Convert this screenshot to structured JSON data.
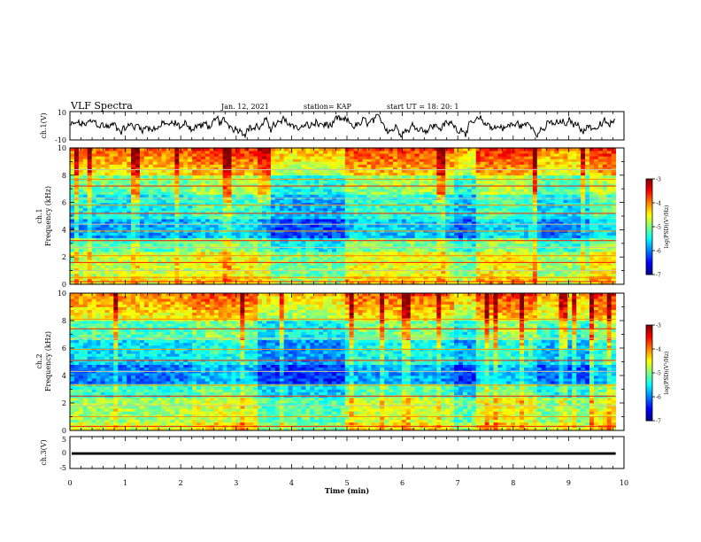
{
  "header": {
    "title": "VLF Spectra",
    "date": "Jan. 12, 2021",
    "station": "station= KAP",
    "start": "start  UT =  18: 20: 1"
  },
  "chart_data": [
    {
      "type": "line",
      "panel": "ch1-waveform",
      "ylabel": "ch.1(V)",
      "ylim": [
        -10,
        10
      ],
      "y_ticks": [
        "10",
        "-10"
      ],
      "xlim": [
        0,
        10
      ]
    },
    {
      "type": "heatmap",
      "panel": "ch1-spectrogram",
      "ylabel": "ch.1\nFrequency (kHz)",
      "ylim": [
        0,
        10
      ],
      "y_ticks": [
        "10",
        "8",
        "6",
        "4",
        "2",
        "0"
      ],
      "xlim": [
        0,
        10
      ],
      "data_end_min": 9.85,
      "colorbar": {
        "label": "log(PSD)(V²/Hz)",
        "range": [
          -7,
          -3
        ],
        "ticks": [
          "-3",
          "-4",
          "-5",
          "-6",
          "-7"
        ]
      },
      "spectral_lines_khz": [
        0.2,
        0.5,
        1.0,
        1.6,
        2.1,
        2.7,
        3.2,
        3.9,
        4.4,
        5.2,
        5.8,
        6.3,
        7.2,
        7.7,
        8.4
      ]
    },
    {
      "type": "heatmap",
      "panel": "ch2-spectrogram",
      "ylabel": "ch.2\nFrequency (kHz)",
      "ylim": [
        0,
        10
      ],
      "y_ticks": [
        "10",
        "8",
        "6",
        "4",
        "2",
        "0"
      ],
      "xlim": [
        0,
        10
      ],
      "data_end_min": 9.85,
      "colorbar": {
        "label": "log(PSD)(V²/Hz)",
        "range": [
          -7,
          -3
        ],
        "ticks": [
          "-3",
          "-4",
          "-5",
          "-6",
          "-7"
        ]
      },
      "spectral_lines_khz": [
        0.3,
        1.0,
        1.8,
        2.5,
        3.3,
        4.3,
        5.1,
        5.9,
        6.7,
        7.4,
        8.1
      ]
    },
    {
      "type": "line",
      "panel": "ch3-waveform",
      "ylabel": "ch.3(V)",
      "ylim": [
        -5,
        5
      ],
      "y_ticks": [
        "5",
        "0",
        "-5"
      ],
      "xlim": [
        0,
        10
      ],
      "level_band": [
        -0.7,
        0.1
      ]
    }
  ],
  "xaxis": {
    "label": "Time (min)",
    "ticks": [
      "0",
      "1",
      "2",
      "3",
      "4",
      "5",
      "6",
      "7",
      "8",
      "9",
      "10"
    ]
  },
  "colors": {
    "colormap": [
      "#00008f",
      "#0000ff",
      "#0080ff",
      "#00ffff",
      "#80ff80",
      "#ffff00",
      "#ff8000",
      "#ff0000",
      "#800000"
    ]
  }
}
